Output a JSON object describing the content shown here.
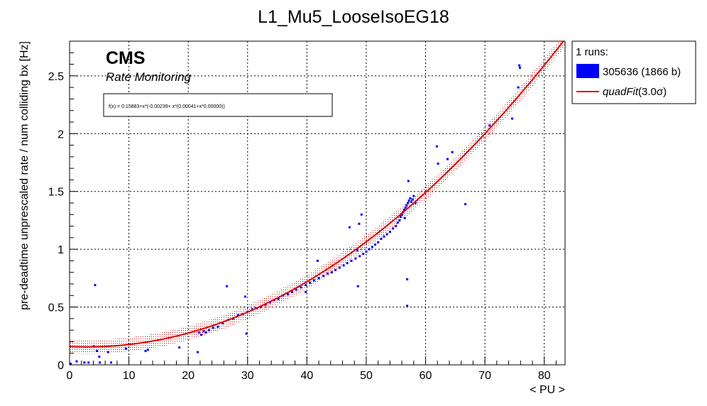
{
  "chart_data": {
    "type": "scatter",
    "title": "L1_Mu5_LooseIsoEG18",
    "xlabel": "< PU >",
    "ylabel": "pre-deadtime unprescaled rate / num colliding bx [Hz]",
    "xlim": [
      0,
      83.5
    ],
    "ylim": [
      0,
      2.8
    ],
    "x_ticks": [
      0,
      10,
      20,
      30,
      40,
      50,
      60,
      70,
      80
    ],
    "y_ticks": [
      0,
      0.5,
      1,
      1.5,
      2,
      2.5
    ],
    "x_tick_labels": [
      "0",
      "10",
      "20",
      "30",
      "40",
      "50",
      "60",
      "70",
      "80"
    ],
    "y_tick_labels": [
      "0",
      "0.5",
      "1",
      "1.5",
      "2",
      "2.5"
    ],
    "grid": true,
    "cms_label": "CMS",
    "cms_sublabel": "Rate Monitoring",
    "fit_formula_text": "f(x) = 0.15883+x*(-0.00239+ x*(0.00041+x*0.00000))",
    "fit": {
      "name": "quadFit(3.0σ)",
      "coefficients": [
        0.15883,
        -0.00239,
        0.00041
      ],
      "band_halfwidth": 0.06,
      "x_range": [
        0,
        83.5
      ],
      "color": "#e00000"
    },
    "legend": {
      "position": "top-right",
      "header": "1 runs:",
      "entries": [
        {
          "label": "305636 (1866 b)",
          "color": "#0000ff",
          "kind": "box"
        },
        {
          "label_main": "quadFit",
          "label_suffix": "(3.0σ)",
          "color": "#e00000",
          "kind": "line"
        }
      ]
    },
    "series": [
      {
        "name": "305636 (1866 b)",
        "color": "#0000ff",
        "points": [
          [
            0.2,
            0.01
          ],
          [
            1.2,
            0.03
          ],
          [
            2.5,
            0.02
          ],
          [
            3.2,
            0.02
          ],
          [
            4.1,
            0.16
          ],
          [
            4.3,
            0.69
          ],
          [
            4.6,
            0.12
          ],
          [
            5.0,
            0.07
          ],
          [
            5.1,
            0.02
          ],
          [
            6.5,
            0.11
          ],
          [
            7.0,
            0.02
          ],
          [
            9.5,
            0.14
          ],
          [
            12.8,
            0.12
          ],
          [
            13.2,
            0.13
          ],
          [
            18.5,
            0.15
          ],
          [
            21.6,
            0.11
          ],
          [
            21.8,
            0.28
          ],
          [
            22.2,
            0.26
          ],
          [
            22.6,
            0.29
          ],
          [
            23.0,
            0.28
          ],
          [
            23.5,
            0.3
          ],
          [
            24.2,
            0.32
          ],
          [
            25.0,
            0.33
          ],
          [
            25.8,
            0.36
          ],
          [
            26.5,
            0.68
          ],
          [
            26.8,
            0.39
          ],
          [
            27.6,
            0.4
          ],
          [
            28.4,
            0.43
          ],
          [
            29.2,
            0.44
          ],
          [
            29.6,
            0.59
          ],
          [
            29.8,
            0.27
          ],
          [
            30.0,
            0.46
          ],
          [
            30.8,
            0.48
          ],
          [
            31.5,
            0.49
          ],
          [
            32.2,
            0.5
          ],
          [
            33.0,
            0.52
          ],
          [
            33.8,
            0.54
          ],
          [
            34.5,
            0.56
          ],
          [
            35.2,
            0.57
          ],
          [
            36.0,
            0.6
          ],
          [
            36.8,
            0.61
          ],
          [
            37.5,
            0.63
          ],
          [
            38.2,
            0.65
          ],
          [
            39.0,
            0.67
          ],
          [
            39.8,
            0.69
          ],
          [
            39.8,
            0.63
          ],
          [
            40.5,
            0.71
          ],
          [
            41.2,
            0.73
          ],
          [
            41.8,
            0.9
          ],
          [
            42.0,
            0.75
          ],
          [
            42.8,
            0.77
          ],
          [
            43.5,
            0.79
          ],
          [
            44.2,
            0.8
          ],
          [
            44.8,
            0.82
          ],
          [
            45.5,
            0.84
          ],
          [
            46.2,
            0.86
          ],
          [
            46.8,
            0.88
          ],
          [
            47.2,
            1.19
          ],
          [
            47.5,
            0.9
          ],
          [
            48.2,
            0.92
          ],
          [
            48.5,
            0.99
          ],
          [
            48.6,
            0.68
          ],
          [
            48.8,
            1.22
          ],
          [
            48.9,
            0.94
          ],
          [
            49.2,
            1.3
          ],
          [
            49.5,
            0.96
          ],
          [
            50.0,
            0.98
          ],
          [
            50.5,
            1.0
          ],
          [
            51.0,
            1.02
          ],
          [
            51.5,
            1.04
          ],
          [
            52.0,
            1.06
          ],
          [
            52.5,
            1.09
          ],
          [
            53.0,
            1.11
          ],
          [
            53.5,
            1.13
          ],
          [
            54.0,
            1.15
          ],
          [
            54.5,
            1.18
          ],
          [
            55.0,
            1.2
          ],
          [
            55.3,
            1.23
          ],
          [
            55.6,
            1.25
          ],
          [
            55.8,
            1.28
          ],
          [
            56.0,
            1.3
          ],
          [
            56.2,
            1.32
          ],
          [
            56.4,
            1.34
          ],
          [
            56.5,
            1.27
          ],
          [
            56.6,
            1.36
          ],
          [
            56.8,
            1.38
          ],
          [
            56.9,
            0.74
          ],
          [
            56.9,
            0.51
          ],
          [
            57.0,
            1.4
          ],
          [
            57.1,
            1.59
          ],
          [
            57.2,
            1.42
          ],
          [
            57.4,
            1.44
          ],
          [
            57.6,
            1.41
          ],
          [
            57.8,
            1.43
          ],
          [
            58.0,
            1.46
          ],
          [
            58.3,
            1.4
          ],
          [
            61.9,
            1.89
          ],
          [
            62.1,
            1.74
          ],
          [
            63.7,
            1.78
          ],
          [
            64.5,
            1.84
          ],
          [
            66.7,
            1.39
          ],
          [
            70.8,
            2.07
          ],
          [
            74.6,
            2.13
          ],
          [
            75.6,
            2.4
          ],
          [
            75.8,
            2.59
          ],
          [
            75.9,
            2.57
          ]
        ]
      }
    ]
  }
}
